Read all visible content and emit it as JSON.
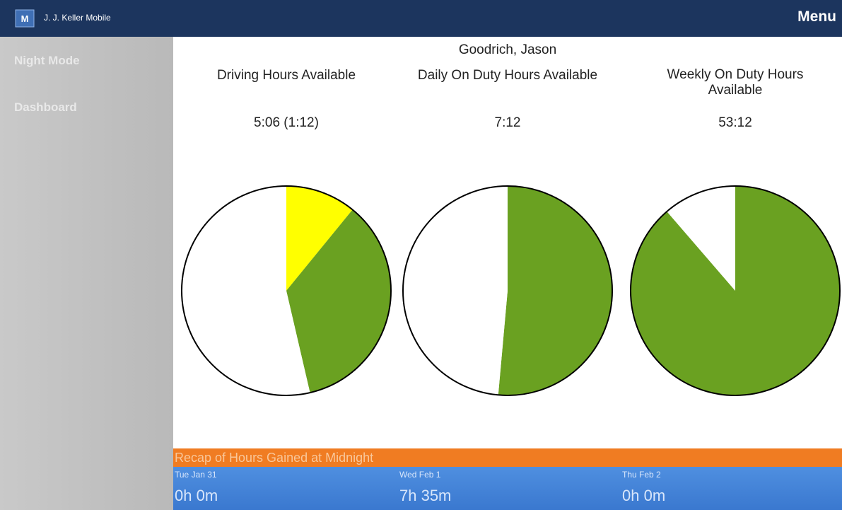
{
  "header": {
    "app_name": "J. J. Keller Mobile",
    "menu": "Menu"
  },
  "sidebar": {
    "items": [
      "Night Mode",
      "Dashboard"
    ]
  },
  "driver": "Goodrich, Jason",
  "gauges": [
    {
      "title": "Driving Hours Available",
      "value": "5:06 (1:12)",
      "segments": [
        {
          "color": "#ffff00",
          "value": 1.2
        },
        {
          "color": "#6aa121",
          "value": 3.9
        },
        {
          "color": "#ffffff",
          "value": 5.9
        }
      ]
    },
    {
      "title": "Daily On Duty Hours Available",
      "value": "7:12",
      "segments": [
        {
          "color": "#6aa121",
          "value": 7.2
        },
        {
          "color": "#ffffff",
          "value": 6.8
        }
      ]
    },
    {
      "title": "Weekly On Duty Hours Available",
      "value": "53:12",
      "segments": [
        {
          "color": "#6aa121",
          "value": 53.2
        },
        {
          "color": "#ffffff",
          "value": 6.8
        }
      ]
    }
  ],
  "recap": {
    "title": "Recap of Hours Gained at Midnight",
    "days": [
      {
        "date": "Tue Jan 31",
        "hours": "0h 0m"
      },
      {
        "date": "Wed Feb 1",
        "hours": "7h 35m"
      },
      {
        "date": "Thu Feb 2",
        "hours": "0h 0m"
      }
    ]
  }
}
